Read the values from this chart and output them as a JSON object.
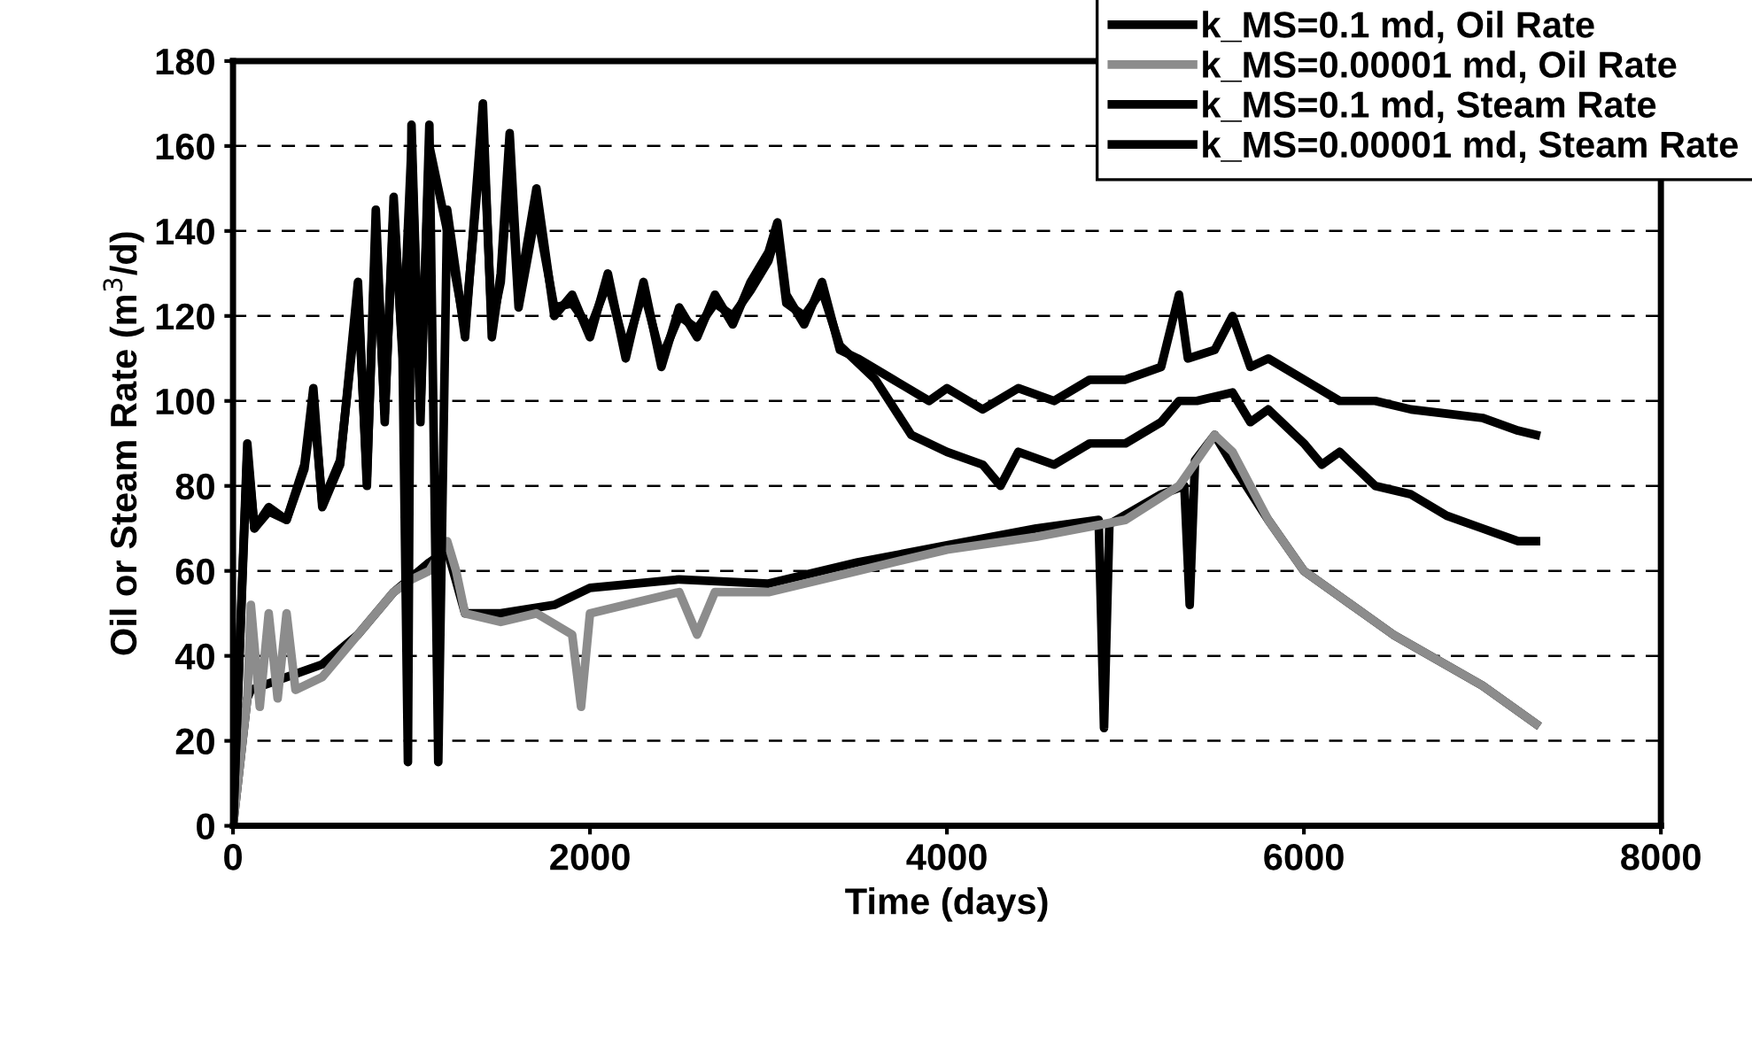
{
  "chart_data": {
    "type": "line",
    "xlabel": "Time (days)",
    "ylabel": "Oil or Steam Rate (m$^{3}$/d)",
    "xlim": [
      0,
      8000
    ],
    "xticks": [
      0,
      2000,
      4000,
      6000,
      8000
    ],
    "ylim": [
      0,
      180
    ],
    "yticks": [
      0,
      20,
      40,
      60,
      80,
      100,
      120,
      140,
      160,
      180
    ],
    "grid": "y",
    "legend": "top right",
    "series": [
      {
        "name": "k_MS=0.1 md, Oil Rate",
        "color": "#000000",
        "x": [
          0,
          80,
          100,
          300,
          500,
          700,
          900,
          1100,
          1200,
          1300,
          1500,
          1800,
          2000,
          2500,
          3000,
          3500,
          4000,
          4500,
          4850,
          4880,
          4910,
          5200,
          5330,
          5360,
          5390,
          5500,
          5600,
          5800,
          6000,
          6500,
          7000,
          7300
        ],
        "values": [
          0,
          30,
          32,
          35,
          38,
          45,
          55,
          62,
          65,
          50,
          50,
          52,
          56,
          58,
          57,
          62,
          66,
          70,
          72,
          23,
          71,
          78,
          80,
          52,
          86,
          92,
          85,
          72,
          60,
          45,
          33,
          24
        ]
      },
      {
        "name": "k_MS=0.00001 md, Oil Rate",
        "color": "#8c8c8c",
        "x": [
          0,
          80,
          100,
          150,
          200,
          250,
          300,
          350,
          500,
          700,
          900,
          1000,
          1100,
          1200,
          1250,
          1300,
          1500,
          1700,
          1900,
          1950,
          2000,
          2200,
          2500,
          2600,
          2700,
          3000,
          3500,
          4000,
          4500,
          5000,
          5300,
          5500,
          5600,
          5800,
          6000,
          6500,
          7000,
          7300
        ],
        "values": [
          0,
          30,
          52,
          28,
          50,
          30,
          50,
          32,
          35,
          45,
          55,
          58,
          60,
          67,
          60,
          50,
          48,
          50,
          45,
          28,
          50,
          52,
          55,
          45,
          55,
          55,
          60,
          65,
          68,
          72,
          80,
          92,
          88,
          72,
          60,
          45,
          33,
          24
        ]
      },
      {
        "name": "k_MS=0.1 md, Steam Rate",
        "color": "#000000",
        "x": [
          0,
          80,
          120,
          200,
          300,
          400,
          450,
          500,
          600,
          700,
          750,
          800,
          850,
          900,
          950,
          980,
          1000,
          1050,
          1100,
          1150,
          1200,
          1300,
          1400,
          1450,
          1500,
          1550,
          1600,
          1700,
          1800,
          1900,
          2000,
          2100,
          2200,
          2300,
          2400,
          2500,
          2600,
          2700,
          2800,
          2900,
          3000,
          3050,
          3100,
          3200,
          3300,
          3400,
          3500,
          3700,
          3900,
          4000,
          4200,
          4400,
          4600,
          4800,
          5000,
          5200,
          5300,
          5350,
          5500,
          5600,
          5700,
          5800,
          6000,
          6200,
          6400,
          6600,
          6800,
          7000,
          7200,
          7300
        ],
        "values": [
          0,
          90,
          70,
          75,
          72,
          85,
          103,
          75,
          85,
          128,
          80,
          145,
          95,
          148,
          110,
          15,
          165,
          95,
          165,
          15,
          145,
          115,
          170,
          115,
          130,
          163,
          125,
          150,
          120,
          125,
          115,
          130,
          110,
          128,
          108,
          122,
          115,
          125,
          118,
          128,
          135,
          142,
          125,
          118,
          128,
          112,
          110,
          105,
          100,
          103,
          98,
          103,
          100,
          105,
          105,
          108,
          125,
          110,
          112,
          120,
          108,
          110,
          105,
          100,
          100,
          98,
          97,
          96,
          93,
          92
        ]
      },
      {
        "name": "k_MS=0.00001 md, Steam Rate",
        "color": "#000000",
        "x": [
          0,
          80,
          120,
          200,
          300,
          400,
          450,
          500,
          600,
          700,
          750,
          800,
          850,
          900,
          950,
          1000,
          1050,
          1100,
          1200,
          1300,
          1400,
          1450,
          1500,
          1550,
          1600,
          1700,
          1800,
          1900,
          2000,
          2100,
          2200,
          2300,
          2400,
          2500,
          2600,
          2700,
          2800,
          2900,
          3000,
          3050,
          3100,
          3200,
          3300,
          3400,
          3600,
          3800,
          4000,
          4200,
          4300,
          4400,
          4600,
          4800,
          5000,
          5200,
          5300,
          5400,
          5600,
          5700,
          5800,
          6000,
          6100,
          6200,
          6400,
          6600,
          6800,
          7000,
          7200,
          7300
        ],
        "values": [
          0,
          88,
          70,
          74,
          72,
          84,
          100,
          76,
          86,
          125,
          82,
          140,
          97,
          145,
          112,
          160,
          98,
          160,
          140,
          117,
          165,
          118,
          128,
          158,
          122,
          145,
          122,
          123,
          117,
          128,
          112,
          126,
          110,
          120,
          117,
          123,
          120,
          126,
          133,
          140,
          123,
          120,
          126,
          113,
          105,
          92,
          88,
          85,
          80,
          88,
          85,
          90,
          90,
          95,
          100,
          100,
          102,
          95,
          98,
          90,
          85,
          88,
          80,
          78,
          73,
          70,
          67,
          67
        ]
      }
    ]
  }
}
